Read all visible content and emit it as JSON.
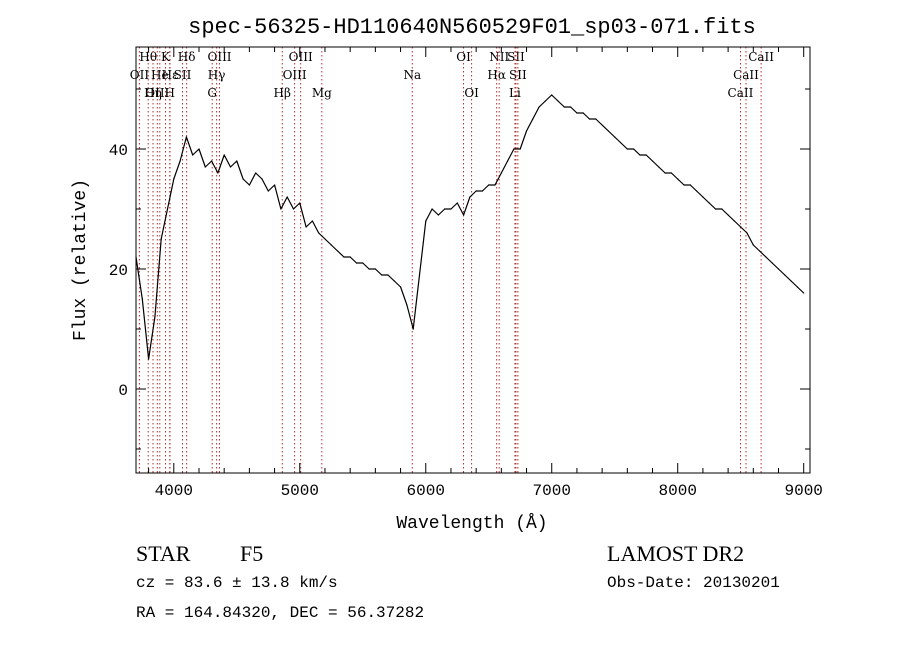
{
  "chart_data": {
    "type": "line",
    "title": "spec-56325-HD110640N560529F01_sp03-071.fits",
    "xlabel": "Wavelength (Å)",
    "ylabel": "Flux (relative)",
    "xlim": [
      3700,
      9050
    ],
    "ylim": [
      -14,
      57
    ],
    "x_ticks": [
      4000,
      5000,
      6000,
      7000,
      8000,
      9000
    ],
    "y_ticks": [
      0,
      20,
      40
    ],
    "grid": false,
    "series": [
      {
        "x": [
          3700,
          3750,
          3800,
          3850,
          3900,
          3950,
          4000,
          4050,
          4100,
          4150,
          4200,
          4250,
          4300,
          4350,
          4400,
          4450,
          4500,
          4550,
          4600,
          4650,
          4700,
          4750,
          4800,
          4850,
          4900,
          4950,
          5000,
          5050,
          5100,
          5150,
          5200,
          5250,
          5300,
          5350,
          5400,
          5450,
          5500,
          5550,
          5600,
          5650,
          5700,
          5750,
          5800,
          5850,
          5900,
          5950,
          6000,
          6050,
          6100,
          6150,
          6200,
          6250,
          6300,
          6350,
          6400,
          6450,
          6500,
          6550,
          6600,
          6650,
          6700,
          6750,
          6800,
          6850,
          6900,
          6950,
          7000,
          7050,
          7100,
          7150,
          7200,
          7250,
          7300,
          7350,
          7400,
          7450,
          7500,
          7550,
          7600,
          7650,
          7700,
          7750,
          7800,
          7850,
          7900,
          7950,
          8000,
          8050,
          8100,
          8150,
          8200,
          8250,
          8300,
          8350,
          8400,
          8450,
          8500,
          8550,
          8600,
          8650,
          8700,
          8750,
          8800,
          8850,
          8900,
          8950,
          9000
        ],
        "values": [
          22,
          15,
          5,
          12,
          25,
          30,
          35,
          38,
          42,
          39,
          40,
          37,
          38,
          36,
          39,
          37,
          38,
          35,
          34,
          36,
          35,
          33,
          34,
          30,
          32,
          30,
          31,
          27,
          28,
          26,
          25,
          24,
          23,
          22,
          22,
          21,
          21,
          20,
          20,
          19,
          19,
          18,
          17,
          14,
          10,
          19,
          28,
          30,
          29,
          30,
          30,
          31,
          29,
          32,
          33,
          33,
          34,
          34,
          36,
          38,
          40,
          40,
          43,
          45,
          47,
          48,
          49,
          48,
          47,
          47,
          46,
          46,
          45,
          45,
          44,
          43,
          42,
          41,
          40,
          40,
          39,
          39,
          38,
          37,
          36,
          36,
          35,
          34,
          34,
          33,
          32,
          31,
          30,
          30,
          29,
          28,
          27,
          26,
          24,
          23,
          22,
          21,
          20,
          19,
          18,
          17,
          16
        ]
      }
    ],
    "lines": [
      {
        "label": "Hθ",
        "x": 3797,
        "row": 0
      },
      {
        "label": "OII",
        "x": 3727,
        "row": 1
      },
      {
        "label": "OIII",
        "x": 3869,
        "row": 2
      },
      {
        "label": "Hη",
        "x": 3835,
        "row": 2
      },
      {
        "label": "He",
        "x": 3889,
        "row": 1
      },
      {
        "label": "K",
        "x": 3934,
        "row": 0
      },
      {
        "label": "H",
        "x": 3968,
        "row": 2
      },
      {
        "label": "Hε",
        "x": 3970,
        "row": 1
      },
      {
        "label": "SII",
        "x": 4069,
        "row": 1
      },
      {
        "label": "Hδ",
        "x": 4102,
        "row": 0
      },
      {
        "label": "OIII",
        "x": 4363,
        "row": 0
      },
      {
        "label": "Hγ",
        "x": 4340,
        "row": 1
      },
      {
        "label": "G",
        "x": 4305,
        "row": 2
      },
      {
        "label": "Hβ",
        "x": 4861,
        "row": 2
      },
      {
        "label": "OIII",
        "x": 5007,
        "row": 0
      },
      {
        "label": "OIII",
        "x": 4959,
        "row": 1
      },
      {
        "label": "Mg",
        "x": 5175,
        "row": 2
      },
      {
        "label": "Na",
        "x": 5893,
        "row": 1
      },
      {
        "label": "OI",
        "x": 6300,
        "row": 0
      },
      {
        "label": "OI",
        "x": 6364,
        "row": 2
      },
      {
        "label": "NII",
        "x": 6583,
        "row": 0
      },
      {
        "label": "Hα",
        "x": 6563,
        "row": 1
      },
      {
        "label": "SII",
        "x": 6716,
        "row": 0
      },
      {
        "label": "SII",
        "x": 6731,
        "row": 1
      },
      {
        "label": "Li",
        "x": 6708,
        "row": 2
      },
      {
        "label": "CaII",
        "x": 8662,
        "row": 0
      },
      {
        "label": "CaII",
        "x": 8542,
        "row": 1
      },
      {
        "label": "CaII",
        "x": 8498,
        "row": 2
      }
    ],
    "colors": {
      "spectrum": "#000000",
      "line_markers": "#b03030"
    }
  },
  "info": {
    "object_class": "STAR",
    "subclass": "F5",
    "survey": "LAMOST DR2",
    "cz": "cz = 83.6 ± 13.8 km/s",
    "obs_date": "Obs-Date: 20130201",
    "radec": "RA = 164.84320, DEC =  56.37282"
  }
}
